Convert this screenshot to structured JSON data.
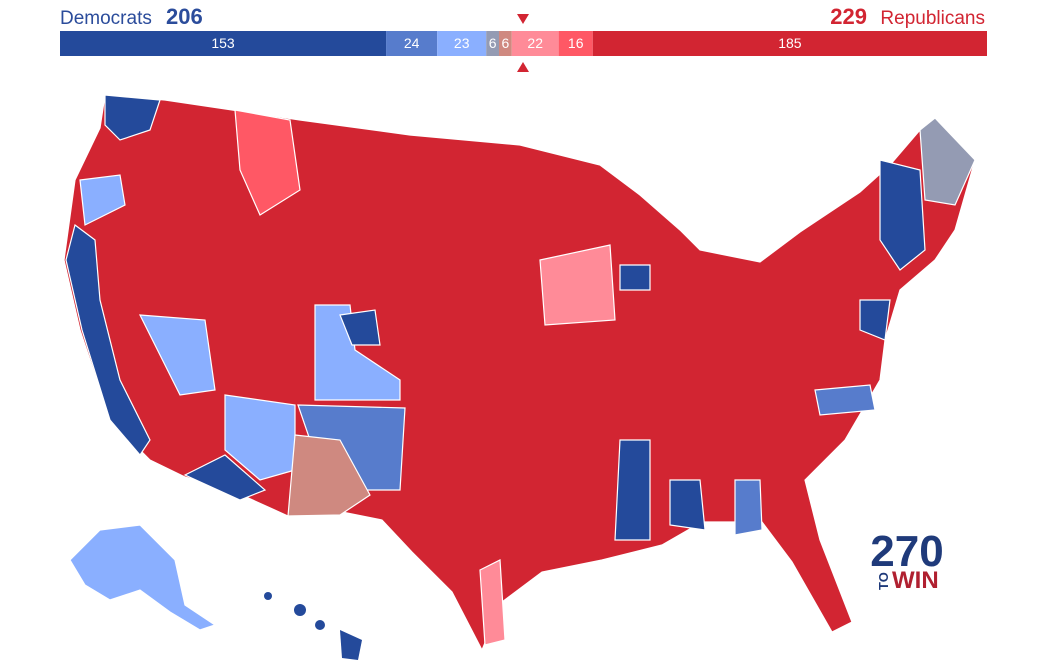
{
  "header": {
    "dem_label": "Democrats",
    "dem_total": 206,
    "rep_total": 229,
    "rep_label": "Republicans"
  },
  "segments": [
    {
      "value": 153,
      "color": "#244a9b"
    },
    {
      "value": 24,
      "color": "#577ccc"
    },
    {
      "value": 23,
      "color": "#8aafff"
    },
    {
      "value": 6,
      "color": "#949bb3"
    },
    {
      "value": 6,
      "color": "#cf8980"
    },
    {
      "value": 22,
      "color": "#ff8b98"
    },
    {
      "value": 16,
      "color": "#ff5865"
    },
    {
      "value": 185,
      "color": "#d22532"
    }
  ],
  "logo": {
    "number": "270",
    "to": "TO",
    "win": "WIN"
  }
}
